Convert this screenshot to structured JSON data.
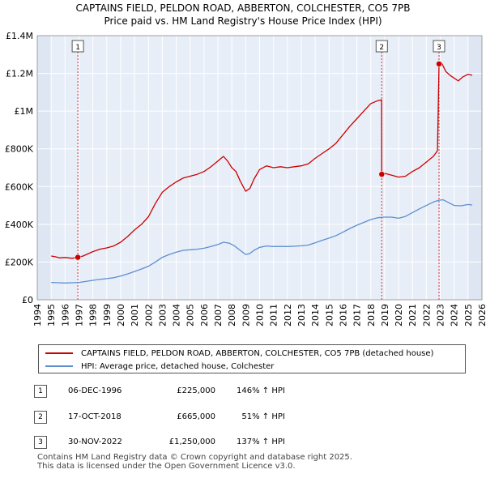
{
  "title_line1": "CAPTAINS FIELD, PELDON ROAD, ABBERTON, COLCHESTER, CO5 7PB",
  "title_line2": "Price paid vs. HM Land Registry's House Price Index (HPI)",
  "colors": {
    "property": "#cc0000",
    "hpi": "#5b8fd0",
    "shade": "#e8eef8",
    "grid": "#ffffff",
    "marker_line": "#cc0000"
  },
  "chart_data": {
    "type": "line",
    "xlim": [
      1994,
      2026
    ],
    "ylim": [
      0,
      1400000
    ],
    "x_ticks": [
      "1994",
      "1995",
      "1996",
      "1997",
      "1998",
      "1999",
      "2000",
      "2001",
      "2002",
      "2003",
      "2004",
      "2005",
      "2006",
      "2007",
      "2008",
      "2009",
      "2010",
      "2011",
      "2012",
      "2013",
      "2014",
      "2015",
      "2016",
      "2017",
      "2018",
      "2019",
      "2020",
      "2021",
      "2022",
      "2023",
      "2024",
      "2025",
      "2026"
    ],
    "y_ticks": [
      {
        "value": 0,
        "label": "£0"
      },
      {
        "value": 200000,
        "label": "£200K"
      },
      {
        "value": 400000,
        "label": "£400K"
      },
      {
        "value": 600000,
        "label": "£600K"
      },
      {
        "value": 800000,
        "label": "£800K"
      },
      {
        "value": 1000000,
        "label": "£1M"
      },
      {
        "value": 1200000,
        "label": "£1.2M"
      },
      {
        "value": 1400000,
        "label": "£1.4M"
      }
    ],
    "shaded_ranges": [
      [
        1994,
        1995.0
      ],
      [
        2025.0,
        2026
      ]
    ],
    "series": [
      {
        "name": "CAPTAINS FIELD, PELDON ROAD, ABBERTON, COLCHESTER, CO5 7PB (detached house)",
        "color": "#cc0000",
        "points": [
          [
            1995.0,
            232000
          ],
          [
            1995.3,
            228000
          ],
          [
            1995.6,
            222000
          ],
          [
            1996.0,
            224000
          ],
          [
            1996.5,
            220000
          ],
          [
            1996.92,
            225000
          ],
          [
            1997.3,
            232000
          ],
          [
            1997.7,
            245000
          ],
          [
            1998.0,
            255000
          ],
          [
            1998.5,
            268000
          ],
          [
            1999.0,
            275000
          ],
          [
            1999.5,
            285000
          ],
          [
            2000.0,
            305000
          ],
          [
            2000.5,
            335000
          ],
          [
            2001.0,
            370000
          ],
          [
            2001.5,
            400000
          ],
          [
            2002.0,
            440000
          ],
          [
            2002.5,
            510000
          ],
          [
            2003.0,
            570000
          ],
          [
            2003.5,
            600000
          ],
          [
            2004.0,
            625000
          ],
          [
            2004.5,
            645000
          ],
          [
            2005.0,
            655000
          ],
          [
            2005.5,
            665000
          ],
          [
            2006.0,
            680000
          ],
          [
            2006.5,
            705000
          ],
          [
            2007.0,
            735000
          ],
          [
            2007.4,
            760000
          ],
          [
            2007.7,
            735000
          ],
          [
            2008.0,
            700000
          ],
          [
            2008.3,
            680000
          ],
          [
            2008.6,
            630000
          ],
          [
            2009.0,
            575000
          ],
          [
            2009.3,
            590000
          ],
          [
            2009.6,
            640000
          ],
          [
            2010.0,
            690000
          ],
          [
            2010.5,
            710000
          ],
          [
            2011.0,
            700000
          ],
          [
            2011.5,
            705000
          ],
          [
            2012.0,
            700000
          ],
          [
            2012.5,
            705000
          ],
          [
            2013.0,
            710000
          ],
          [
            2013.5,
            720000
          ],
          [
            2014.0,
            750000
          ],
          [
            2014.5,
            775000
          ],
          [
            2015.0,
            800000
          ],
          [
            2015.5,
            830000
          ],
          [
            2016.0,
            875000
          ],
          [
            2016.5,
            920000
          ],
          [
            2017.0,
            960000
          ],
          [
            2017.5,
            1000000
          ],
          [
            2018.0,
            1040000
          ],
          [
            2018.5,
            1055000
          ],
          [
            2018.78,
            1060000
          ],
          [
            2018.79,
            665000
          ],
          [
            2019.0,
            670000
          ],
          [
            2019.5,
            660000
          ],
          [
            2020.0,
            650000
          ],
          [
            2020.5,
            655000
          ],
          [
            2021.0,
            680000
          ],
          [
            2021.5,
            700000
          ],
          [
            2022.0,
            730000
          ],
          [
            2022.5,
            760000
          ],
          [
            2022.8,
            790000
          ],
          [
            2022.91,
            1250000
          ],
          [
            2023.1,
            1255000
          ],
          [
            2023.4,
            1210000
          ],
          [
            2023.7,
            1190000
          ],
          [
            2024.0,
            1175000
          ],
          [
            2024.3,
            1160000
          ],
          [
            2024.6,
            1180000
          ],
          [
            2025.0,
            1195000
          ],
          [
            2025.3,
            1190000
          ]
        ]
      },
      {
        "name": "HPI: Average price, detached house, Colchester",
        "color": "#5b8fd0",
        "points": [
          [
            1995.0,
            92000
          ],
          [
            1995.5,
            90000
          ],
          [
            1996.0,
            89000
          ],
          [
            1996.5,
            90000
          ],
          [
            1997.0,
            92000
          ],
          [
            1997.5,
            97000
          ],
          [
            1998.0,
            103000
          ],
          [
            1998.5,
            108000
          ],
          [
            1999.0,
            112000
          ],
          [
            1999.5,
            117000
          ],
          [
            2000.0,
            126000
          ],
          [
            2000.5,
            137000
          ],
          [
            2001.0,
            150000
          ],
          [
            2001.5,
            163000
          ],
          [
            2002.0,
            178000
          ],
          [
            2002.5,
            200000
          ],
          [
            2003.0,
            225000
          ],
          [
            2003.5,
            240000
          ],
          [
            2004.0,
            252000
          ],
          [
            2004.5,
            262000
          ],
          [
            2005.0,
            265000
          ],
          [
            2005.5,
            268000
          ],
          [
            2006.0,
            273000
          ],
          [
            2006.5,
            282000
          ],
          [
            2007.0,
            293000
          ],
          [
            2007.4,
            305000
          ],
          [
            2007.8,
            300000
          ],
          [
            2008.2,
            285000
          ],
          [
            2008.6,
            262000
          ],
          [
            2009.0,
            240000
          ],
          [
            2009.3,
            245000
          ],
          [
            2009.6,
            262000
          ],
          [
            2010.0,
            278000
          ],
          [
            2010.5,
            285000
          ],
          [
            2011.0,
            282000
          ],
          [
            2011.5,
            283000
          ],
          [
            2012.0,
            282000
          ],
          [
            2012.5,
            284000
          ],
          [
            2013.0,
            286000
          ],
          [
            2013.5,
            290000
          ],
          [
            2014.0,
            302000
          ],
          [
            2014.5,
            315000
          ],
          [
            2015.0,
            327000
          ],
          [
            2015.5,
            340000
          ],
          [
            2016.0,
            358000
          ],
          [
            2016.5,
            378000
          ],
          [
            2017.0,
            395000
          ],
          [
            2017.5,
            410000
          ],
          [
            2018.0,
            425000
          ],
          [
            2018.5,
            435000
          ],
          [
            2019.0,
            438000
          ],
          [
            2019.5,
            438000
          ],
          [
            2020.0,
            432000
          ],
          [
            2020.5,
            442000
          ],
          [
            2021.0,
            462000
          ],
          [
            2021.5,
            482000
          ],
          [
            2022.0,
            500000
          ],
          [
            2022.5,
            518000
          ],
          [
            2022.9,
            528000
          ],
          [
            2023.2,
            530000
          ],
          [
            2023.6,
            515000
          ],
          [
            2024.0,
            500000
          ],
          [
            2024.5,
            498000
          ],
          [
            2025.0,
            505000
          ],
          [
            2025.3,
            502000
          ]
        ]
      }
    ],
    "sales": [
      {
        "id": "1",
        "x": 1996.92,
        "y": 225000
      },
      {
        "id": "2",
        "x": 2018.79,
        "y": 665000
      },
      {
        "id": "3",
        "x": 2022.91,
        "y": 1250000
      }
    ]
  },
  "legend": [
    {
      "label": "CAPTAINS FIELD, PELDON ROAD, ABBERTON, COLCHESTER, CO5 7PB (detached house)",
      "color": "#cc0000"
    },
    {
      "label": "HPI: Average price, detached house, Colchester",
      "color": "#5b8fd0"
    }
  ],
  "sales_table": [
    {
      "id": "1",
      "date": "06-DEC-1996",
      "price": "£225,000",
      "hpi": "146% ↑ HPI"
    },
    {
      "id": "2",
      "date": "17-OCT-2018",
      "price": "£665,000",
      "hpi": "  51% ↑ HPI"
    },
    {
      "id": "3",
      "date": "30-NOV-2022",
      "price": "£1,250,000",
      "hpi": "137% ↑ HPI"
    }
  ],
  "footer_line1": "Contains HM Land Registry data © Crown copyright and database right 2025.",
  "footer_line2": "This data is licensed under the Open Government Licence v3.0."
}
